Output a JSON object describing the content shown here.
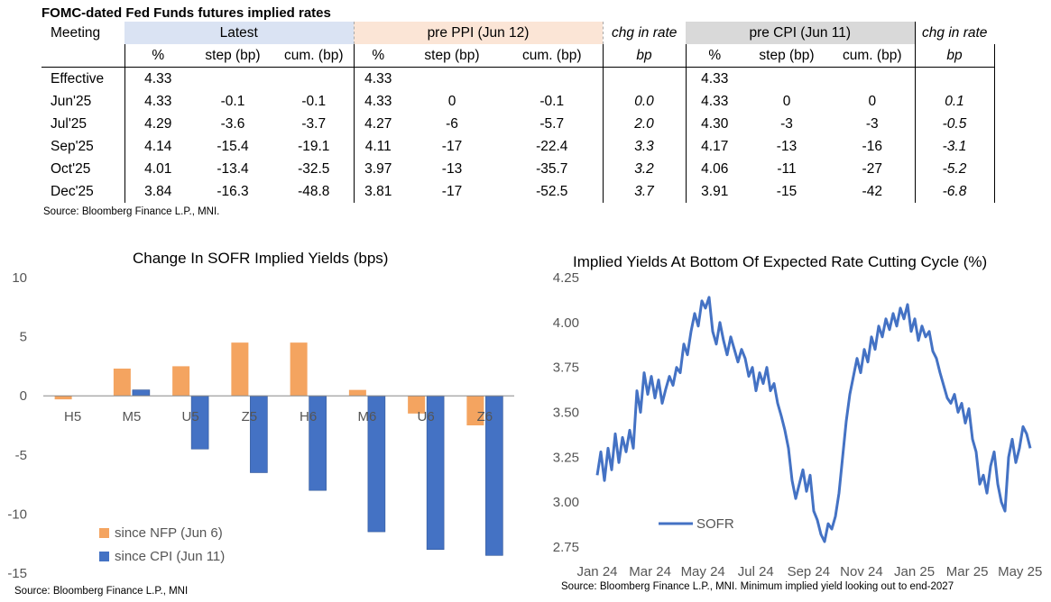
{
  "table": {
    "title": "FOMC-dated Fed Funds futures implied rates",
    "meeting_label": "Meeting",
    "groups": {
      "latest": "Latest",
      "ppi": "pre PPI (Jun 12)",
      "chg1": "chg in rate",
      "cpi": "pre CPI (Jun 11)",
      "chg2": "chg in rate"
    },
    "subheaders": {
      "pct": "%",
      "step": "step (bp)",
      "cum": "cum. (bp)",
      "bp": "bp"
    },
    "rows": [
      {
        "meeting": "Effective",
        "l_pct": "4.33",
        "l_step": "",
        "l_cum": "",
        "p_pct": "4.33",
        "p_step": "",
        "p_cum": "",
        "chg1": "",
        "c_pct": "4.33",
        "c_step": "",
        "c_cum": "",
        "chg2": ""
      },
      {
        "meeting": "Jun'25",
        "l_pct": "4.33",
        "l_step": "-0.1",
        "l_cum": "-0.1",
        "p_pct": "4.33",
        "p_step": "0",
        "p_cum": "-0.1",
        "chg1": "0.0",
        "c_pct": "4.33",
        "c_step": "0",
        "c_cum": "0",
        "chg2": "0.1"
      },
      {
        "meeting": "Jul'25",
        "l_pct": "4.29",
        "l_step": "-3.6",
        "l_cum": "-3.7",
        "p_pct": "4.27",
        "p_step": "-6",
        "p_cum": "-5.7",
        "chg1": "2.0",
        "c_pct": "4.30",
        "c_step": "-3",
        "c_cum": "-3",
        "chg2": "-0.5"
      },
      {
        "meeting": "Sep'25",
        "l_pct": "4.14",
        "l_step": "-15.4",
        "l_cum": "-19.1",
        "p_pct": "4.11",
        "p_step": "-17",
        "p_cum": "-22.4",
        "chg1": "3.3",
        "c_pct": "4.17",
        "c_step": "-13",
        "c_cum": "-16",
        "chg2": "-3.1"
      },
      {
        "meeting": "Oct'25",
        "l_pct": "4.01",
        "l_step": "-13.4",
        "l_cum": "-32.5",
        "p_pct": "3.97",
        "p_step": "-13",
        "p_cum": "-35.7",
        "chg1": "3.2",
        "c_pct": "4.06",
        "c_step": "-11",
        "c_cum": "-27",
        "chg2": "-5.2"
      },
      {
        "meeting": "Dec'25",
        "l_pct": "3.84",
        "l_step": "-16.3",
        "l_cum": "-48.8",
        "p_pct": "3.81",
        "p_step": "-17",
        "p_cum": "-52.5",
        "chg1": "3.7",
        "c_pct": "3.91",
        "c_step": "-15",
        "c_cum": "-42",
        "chg2": "-6.8"
      }
    ],
    "source": "Source: Bloomberg Finance L.P., MNI."
  },
  "colors": {
    "orange": "#f4a460",
    "blue": "#4472c4",
    "line": "#4472c4"
  },
  "chart_data": [
    {
      "type": "bar",
      "title": "Change In SOFR Implied Yields (bps)",
      "categories": [
        "H5",
        "M5",
        "U5",
        "Z5",
        "H6",
        "M6",
        "U6",
        "Z6"
      ],
      "series": [
        {
          "name": "since NFP (Jun 6)",
          "values": [
            -0.3,
            2.3,
            2.5,
            4.5,
            4.5,
            0.5,
            -1.5,
            -2.5
          ]
        },
        {
          "name": "since CPI (Jun 11)",
          "values": [
            0,
            0.5,
            -4.5,
            -6.5,
            -8.0,
            -11.5,
            -13.0,
            -13.5
          ]
        }
      ],
      "ylim": [
        -15,
        10
      ],
      "yticks": [
        "10",
        "5",
        "0",
        "-5",
        "-10",
        "-15"
      ],
      "legend": "bottom-left",
      "source": "Source: Bloomberg Finance L.P., MNI"
    },
    {
      "type": "line",
      "title": "Implied Yields At Bottom Of Expected Rate Cutting Cycle (%)",
      "xticks": [
        "Jan 24",
        "Mar 24",
        "May 24",
        "Jul 24",
        "Sep 24",
        "Nov 24",
        "Jan 25",
        "Mar 25",
        "May 25"
      ],
      "yticks": [
        "4.25",
        "4.00",
        "3.75",
        "3.50",
        "3.25",
        "3.00",
        "2.75"
      ],
      "ylim": [
        2.75,
        4.25
      ],
      "series": [
        {
          "name": "SOFR",
          "values": [
            3.15,
            3.28,
            3.12,
            3.3,
            3.18,
            3.38,
            3.22,
            3.36,
            3.28,
            3.4,
            3.3,
            3.62,
            3.5,
            3.72,
            3.6,
            3.7,
            3.58,
            3.68,
            3.55,
            3.63,
            3.7,
            3.65,
            3.75,
            3.72,
            3.88,
            3.82,
            3.95,
            4.05,
            3.98,
            4.12,
            4.08,
            4.14,
            3.95,
            3.88,
            4.0,
            3.9,
            3.82,
            3.92,
            3.85,
            3.78,
            3.85,
            3.8,
            3.7,
            3.75,
            3.62,
            3.72,
            3.66,
            3.75,
            3.62,
            3.66,
            3.55,
            3.48,
            3.4,
            3.3,
            3.12,
            3.02,
            3.1,
            3.18,
            3.06,
            3.15,
            2.95,
            2.9,
            2.82,
            2.78,
            2.88,
            2.85,
            2.92,
            3.05,
            3.25,
            3.45,
            3.6,
            3.7,
            3.8,
            3.72,
            3.85,
            3.78,
            3.92,
            3.85,
            3.98,
            3.92,
            4.02,
            3.96,
            4.05,
            3.98,
            4.08,
            4.02,
            4.1,
            3.95,
            4.02,
            3.9,
            3.98,
            3.92,
            3.95,
            3.84,
            3.8,
            3.72,
            3.65,
            3.58,
            3.55,
            3.6,
            3.5,
            3.55,
            3.44,
            3.52,
            3.35,
            3.28,
            3.1,
            3.15,
            3.05,
            3.2,
            3.28,
            3.1,
            3.0,
            2.95,
            3.25,
            3.35,
            3.22,
            3.3,
            3.42,
            3.38,
            3.3
          ]
        }
      ],
      "legend": "bottom-left",
      "source": "Source: Bloomberg Finance L.P., MNI. Minimum implied yield looking out to end-2027"
    }
  ]
}
